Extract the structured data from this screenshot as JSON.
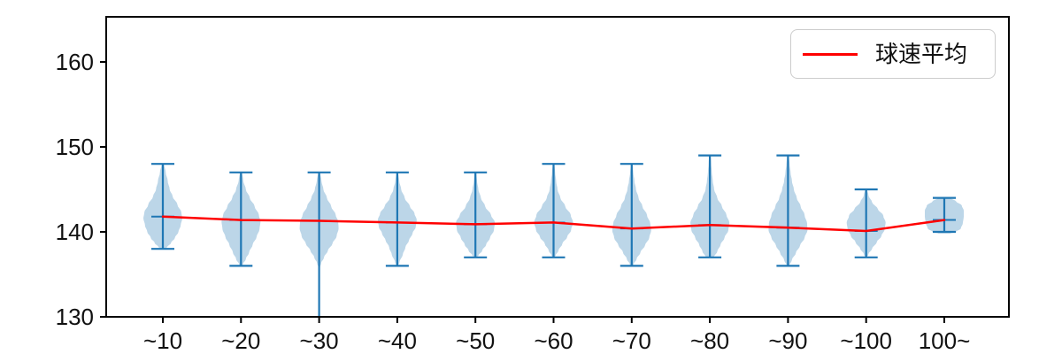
{
  "legend": {
    "label": "球速平均",
    "line_color": "#ff0000"
  },
  "chart_data": {
    "type": "violin",
    "title": "",
    "xlabel": "",
    "ylabel": "",
    "categories": [
      "~10",
      "~20",
      "~30",
      "~40",
      "~50",
      "~60",
      "~70",
      "~80",
      "~90",
      "~100",
      "100~"
    ],
    "yticks": [
      130,
      140,
      150,
      160
    ],
    "ylim": [
      130,
      165
    ],
    "grid": false,
    "legend_entries": [
      {
        "label": "球速平均",
        "color": "#ff0000",
        "position": "upper right"
      }
    ],
    "series": [
      {
        "name": "球速平均",
        "type": "line",
        "color": "#ff0000",
        "values": [
          141.8,
          141.4,
          141.3,
          141.1,
          140.9,
          141.1,
          140.4,
          140.8,
          140.5,
          140.1,
          141.4
        ]
      }
    ],
    "violins": [
      {
        "category": "~10",
        "max": 148,
        "min": 138,
        "min_below_axis": false,
        "mean": 141.8,
        "profile": [
          [
            148,
            0.06
          ],
          [
            147,
            0.15
          ],
          [
            146,
            0.25
          ],
          [
            145,
            0.35
          ],
          [
            144.2,
            0.5
          ],
          [
            143.2,
            0.75
          ],
          [
            142.3,
            0.95
          ],
          [
            141.6,
            1.0
          ],
          [
            140.8,
            0.92
          ],
          [
            140,
            0.8
          ],
          [
            139.3,
            0.62
          ],
          [
            138.7,
            0.42
          ],
          [
            138.2,
            0.22
          ],
          [
            138,
            0.08
          ]
        ]
      },
      {
        "category": "~20",
        "max": 147,
        "min": 136,
        "min_below_axis": false,
        "mean": 141.4,
        "profile": [
          [
            147,
            0.06
          ],
          [
            146,
            0.12
          ],
          [
            145,
            0.25
          ],
          [
            144,
            0.45
          ],
          [
            143,
            0.7
          ],
          [
            142,
            0.92
          ],
          [
            141.2,
            1.0
          ],
          [
            140.3,
            0.95
          ],
          [
            139.4,
            0.8
          ],
          [
            138.5,
            0.6
          ],
          [
            137.6,
            0.42
          ],
          [
            136.8,
            0.25
          ],
          [
            136.2,
            0.1
          ],
          [
            136,
            0.04
          ]
        ]
      },
      {
        "category": "~30",
        "max": 147,
        "min": null,
        "min_below_axis": true,
        "mean": 141.3,
        "profile": [
          [
            147,
            0.05
          ],
          [
            146,
            0.12
          ],
          [
            145,
            0.22
          ],
          [
            144,
            0.4
          ],
          [
            143,
            0.62
          ],
          [
            142,
            0.85
          ],
          [
            141.2,
            0.98
          ],
          [
            140.4,
            1.0
          ],
          [
            139.5,
            0.9
          ],
          [
            138.6,
            0.68
          ],
          [
            137.8,
            0.45
          ],
          [
            137,
            0.25
          ],
          [
            136.3,
            0.1
          ],
          [
            135.8,
            0.04
          ]
        ]
      },
      {
        "category": "~40",
        "max": 147,
        "min": 136,
        "min_below_axis": false,
        "mean": 141.1,
        "profile": [
          [
            147,
            0.05
          ],
          [
            146,
            0.1
          ],
          [
            145,
            0.2
          ],
          [
            144,
            0.38
          ],
          [
            143,
            0.65
          ],
          [
            142.2,
            0.88
          ],
          [
            141.4,
            1.0
          ],
          [
            140.6,
            0.95
          ],
          [
            139.8,
            0.78
          ],
          [
            139,
            0.6
          ],
          [
            138.2,
            0.42
          ],
          [
            137.3,
            0.28
          ],
          [
            136.5,
            0.12
          ],
          [
            136,
            0.05
          ]
        ]
      },
      {
        "category": "~50",
        "max": 147,
        "min": 137,
        "min_below_axis": false,
        "mean": 140.9,
        "profile": [
          [
            147,
            0.04
          ],
          [
            146,
            0.08
          ],
          [
            145,
            0.15
          ],
          [
            144,
            0.28
          ],
          [
            143,
            0.5
          ],
          [
            142,
            0.8
          ],
          [
            141.1,
            1.0
          ],
          [
            140.2,
            0.95
          ],
          [
            139.3,
            0.75
          ],
          [
            138.5,
            0.55
          ],
          [
            137.8,
            0.35
          ],
          [
            137.2,
            0.15
          ],
          [
            137,
            0.06
          ]
        ]
      },
      {
        "category": "~60",
        "max": 148,
        "min": 137,
        "min_below_axis": false,
        "mean": 141.1,
        "profile": [
          [
            148,
            0.04
          ],
          [
            147,
            0.08
          ],
          [
            146,
            0.13
          ],
          [
            145,
            0.2
          ],
          [
            144,
            0.35
          ],
          [
            143,
            0.6
          ],
          [
            142,
            0.88
          ],
          [
            141.1,
            1.0
          ],
          [
            140.2,
            0.9
          ],
          [
            139.4,
            0.7
          ],
          [
            138.6,
            0.45
          ],
          [
            137.8,
            0.25
          ],
          [
            137.2,
            0.1
          ],
          [
            137,
            0.04
          ]
        ]
      },
      {
        "category": "~70",
        "max": 148,
        "min": 136,
        "min_below_axis": false,
        "mean": 140.4,
        "profile": [
          [
            148,
            0.04
          ],
          [
            147,
            0.08
          ],
          [
            146,
            0.14
          ],
          [
            145,
            0.22
          ],
          [
            144,
            0.35
          ],
          [
            143,
            0.55
          ],
          [
            142,
            0.78
          ],
          [
            141,
            0.95
          ],
          [
            140.2,
            1.0
          ],
          [
            139.3,
            0.9
          ],
          [
            138.4,
            0.68
          ],
          [
            137.6,
            0.45
          ],
          [
            136.8,
            0.25
          ],
          [
            136.2,
            0.1
          ],
          [
            136,
            0.04
          ]
        ]
      },
      {
        "category": "~80",
        "max": 149,
        "min": 137,
        "min_below_axis": false,
        "mean": 140.8,
        "profile": [
          [
            149,
            0.04
          ],
          [
            148,
            0.07
          ],
          [
            147,
            0.1
          ],
          [
            146,
            0.15
          ],
          [
            145,
            0.22
          ],
          [
            144,
            0.38
          ],
          [
            143,
            0.62
          ],
          [
            142,
            0.85
          ],
          [
            141.1,
            1.0
          ],
          [
            140.2,
            0.95
          ],
          [
            139.3,
            0.75
          ],
          [
            138.5,
            0.55
          ],
          [
            137.7,
            0.38
          ],
          [
            137,
            0.2
          ]
        ]
      },
      {
        "category": "~90",
        "max": 149,
        "min": 136,
        "min_below_axis": false,
        "mean": 140.5,
        "profile": [
          [
            149,
            0.04
          ],
          [
            148,
            0.08
          ],
          [
            147,
            0.13
          ],
          [
            146,
            0.2
          ],
          [
            145,
            0.3
          ],
          [
            144,
            0.45
          ],
          [
            143,
            0.65
          ],
          [
            142,
            0.85
          ],
          [
            141,
            0.98
          ],
          [
            140.2,
            1.0
          ],
          [
            139.3,
            0.85
          ],
          [
            138.4,
            0.62
          ],
          [
            137.5,
            0.4
          ],
          [
            136.7,
            0.2
          ],
          [
            136,
            0.06
          ]
        ]
      },
      {
        "category": "~100",
        "max": 145,
        "min": 137,
        "min_below_axis": false,
        "mean": 140.1,
        "profile": [
          [
            145,
            0.05
          ],
          [
            144.3,
            0.12
          ],
          [
            143.5,
            0.3
          ],
          [
            142.7,
            0.6
          ],
          [
            141.9,
            0.88
          ],
          [
            141.1,
            1.0
          ],
          [
            140.3,
            0.95
          ],
          [
            139.5,
            0.78
          ],
          [
            138.8,
            0.55
          ],
          [
            138,
            0.3
          ],
          [
            137.4,
            0.12
          ],
          [
            137,
            0.05
          ]
        ]
      },
      {
        "category": "100~",
        "max": 144,
        "min": 140,
        "min_below_axis": false,
        "mean": 141.4,
        "profile": [
          [
            144,
            0.3
          ],
          [
            143.6,
            0.6
          ],
          [
            143.1,
            0.9
          ],
          [
            142.5,
            1.0
          ],
          [
            141.8,
            1.0
          ],
          [
            141,
            0.95
          ],
          [
            140.4,
            0.85
          ],
          [
            140,
            0.6
          ],
          [
            139.8,
            0.3
          ]
        ]
      }
    ],
    "colors": {
      "violin_fill": "#bcd6e8",
      "violin_lines": "#1f77b4",
      "mean_line": "#ff0000",
      "axis": "#000000"
    }
  }
}
